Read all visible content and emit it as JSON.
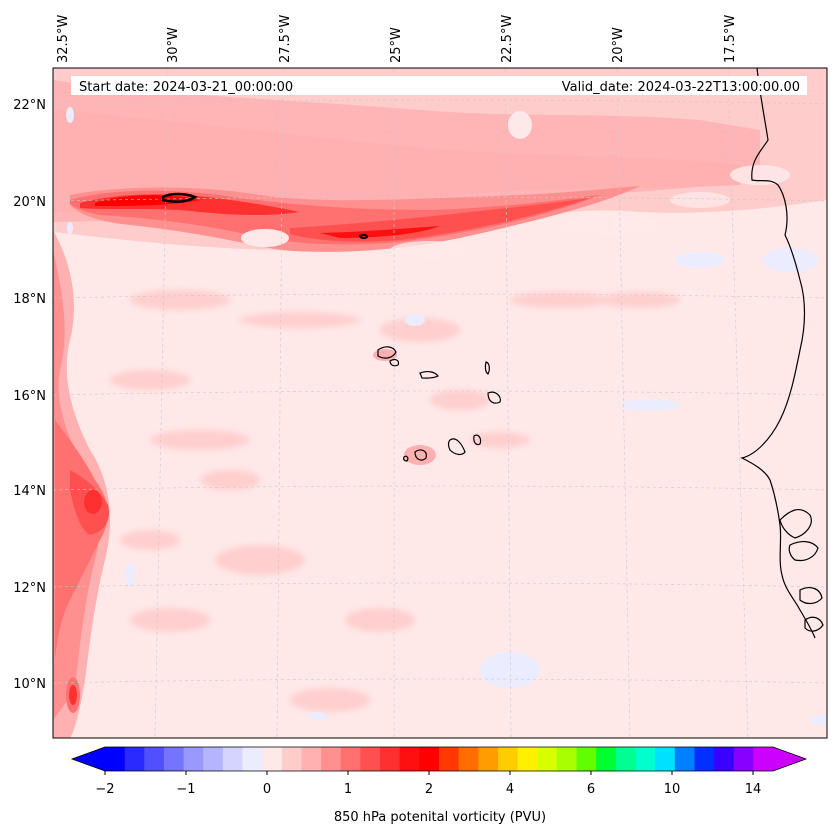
{
  "map": {
    "start_date_label": "Start date: 2024-03-21_00:00:00",
    "valid_date_label": "Valid_date: 2024-03-22T13:00:00.00",
    "lon_labels": [
      "32.5°W",
      "30°W",
      "27.5°W",
      "25°W",
      "22.5°W",
      "20°W",
      "17.5°W"
    ],
    "lat_labels": [
      "22°N",
      "20°N",
      "18°N",
      "16°N",
      "14°N",
      "12°N",
      "10°N"
    ],
    "ocean_base_color": "#ffe8e8",
    "coastline_color": "#000000"
  },
  "colorbar": {
    "label": "850 hPa potenital vorticity (PVU)",
    "tick_labels": [
      "−2",
      "−1",
      "0",
      "1",
      "2",
      "4",
      "6",
      "10",
      "14"
    ],
    "colors": [
      "#0000ff",
      "#2a2aff",
      "#5050ff",
      "#7474ff",
      "#9898ff",
      "#b4b4ff",
      "#d4d4ff",
      "#ececff",
      "#ffe8e8",
      "#ffcccc",
      "#ffb0b0",
      "#ff9090",
      "#ff7070",
      "#ff5050",
      "#ff3030",
      "#ff1010",
      "#ff0000",
      "#ff3a00",
      "#ff6c00",
      "#ff9c00",
      "#ffcc00",
      "#fff000",
      "#d8ff00",
      "#a8ff00",
      "#60ff00",
      "#00ff30",
      "#00ff90",
      "#00ffcc",
      "#00e0ff",
      "#0080ff",
      "#0030ff",
      "#3a00ff",
      "#8800ff",
      "#cc00ff"
    ],
    "under_color": "#0000ff",
    "over_color": "#cc00ff"
  }
}
